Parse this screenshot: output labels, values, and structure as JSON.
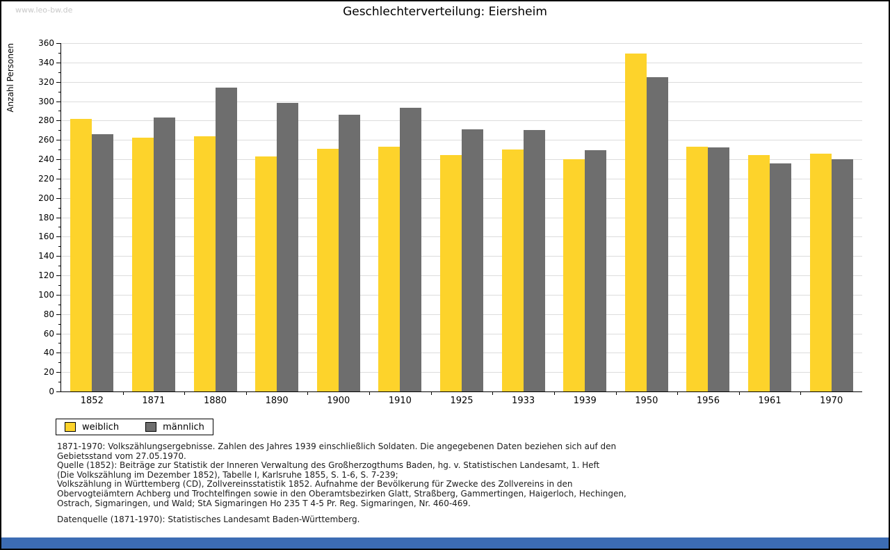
{
  "page": {
    "watermark": "www.leo-bw.de",
    "title": "Geschlechterverteilung: Eiersheim",
    "footer_bar_color": "#3c6cb4"
  },
  "chart_data": {
    "type": "bar",
    "title": "Geschlechterverteilung: Eiersheim",
    "xlabel": "",
    "ylabel": "Anzahl Personen",
    "categories": [
      "1852",
      "1871",
      "1880",
      "1890",
      "1900",
      "1910",
      "1925",
      "1933",
      "1939",
      "1950",
      "1956",
      "1961",
      "1970"
    ],
    "series": [
      {
        "name": "weiblich",
        "color": "#fdd32b",
        "values": [
          282,
          262,
          264,
          243,
          251,
          253,
          244,
          250,
          240,
          349,
          253,
          244,
          246
        ]
      },
      {
        "name": "männlich",
        "color": "#6e6e6e",
        "values": [
          266,
          283,
          314,
          298,
          286,
          293,
          271,
          270,
          249,
          325,
          252,
          236,
          240
        ]
      }
    ],
    "ylim": [
      0,
      360
    ],
    "ytick_step": 20,
    "ytick_minor_step": 10,
    "grid": true,
    "legend_position": "bottom-left",
    "grid_color": "#dcdcdc"
  },
  "footnotes": {
    "lines": [
      "1871-1970: Volkszählungsergebnisse. Zahlen des Jahres 1939 einschließlich Soldaten. Die angegebenen Daten beziehen sich auf den",
      "Gebietsstand vom 27.05.1970.",
      "Quelle (1852): Beiträge zur Statistik der Inneren Verwaltung des Großherzogthums Baden, hg. v. Statistischen Landesamt, 1. Heft",
      "(Die Volkszählung im Dezember 1852), Tabelle I, Karlsruhe 1855, S. 1-6, S. 7-239;",
      "Volkszählung in Württemberg (CD), Zollvereinsstatistik 1852. Aufnahme der Bevölkerung für Zwecke des Zollvereins in den",
      "Obervogteiämtern Achberg und Trochtelfingen sowie in den Oberamtsbezirken Glatt, Straßberg, Gammertingen, Haigerloch, Hechingen,",
      "Ostrach, Sigmaringen, und Wald; StA Sigmaringen Ho 235 T 4-5 Pr. Reg. Sigmaringen, Nr. 460-469."
    ],
    "datasource": "Datenquelle (1871-1970): Statistisches Landesamt Baden-Württemberg."
  }
}
